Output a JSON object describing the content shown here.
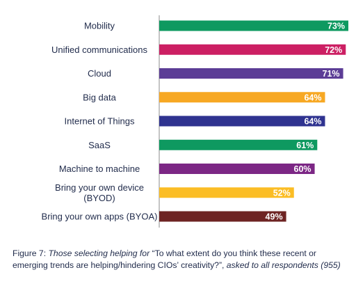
{
  "chart_data": {
    "type": "bar",
    "orientation": "horizontal",
    "categories": [
      "Mobility",
      "Unified communications",
      "Cloud",
      "Big data",
      "Internet of Things",
      "SaaS",
      "Machine to machine",
      "Bring your own device (BYOD)",
      "Bring your own apps (BYOA)"
    ],
    "category_lines": [
      [
        "Mobility"
      ],
      [
        "Unified communications"
      ],
      [
        "Cloud"
      ],
      [
        "Big data"
      ],
      [
        "Internet of Things"
      ],
      [
        "SaaS"
      ],
      [
        "Machine to machine"
      ],
      [
        "Bring your own device",
        "(BYOD)"
      ],
      [
        "Bring your own apps (BYOA)"
      ]
    ],
    "values": [
      73,
      72,
      71,
      64,
      64,
      61,
      60,
      52,
      49
    ],
    "value_labels": [
      "73%",
      "72%",
      "71%",
      "64%",
      "64%",
      "61%",
      "60%",
      "52%",
      "49%"
    ],
    "colors": [
      "#0e9960",
      "#cc1f63",
      "#5c3d96",
      "#f7a823",
      "#2f3390",
      "#0e9960",
      "#7c2785",
      "#fbbd25",
      "#6e2423"
    ],
    "xlim": [
      0,
      100
    ],
    "grid": false,
    "legend": "none"
  },
  "caption": {
    "prefix": "Figure 7: ",
    "italic1": "Those selecting helping for",
    "quote": " “To what extent do you think these recent or emerging trends are helping/hindering CIOs’ creativity?”, ",
    "italic2": "asked to all respondents (955)"
  }
}
